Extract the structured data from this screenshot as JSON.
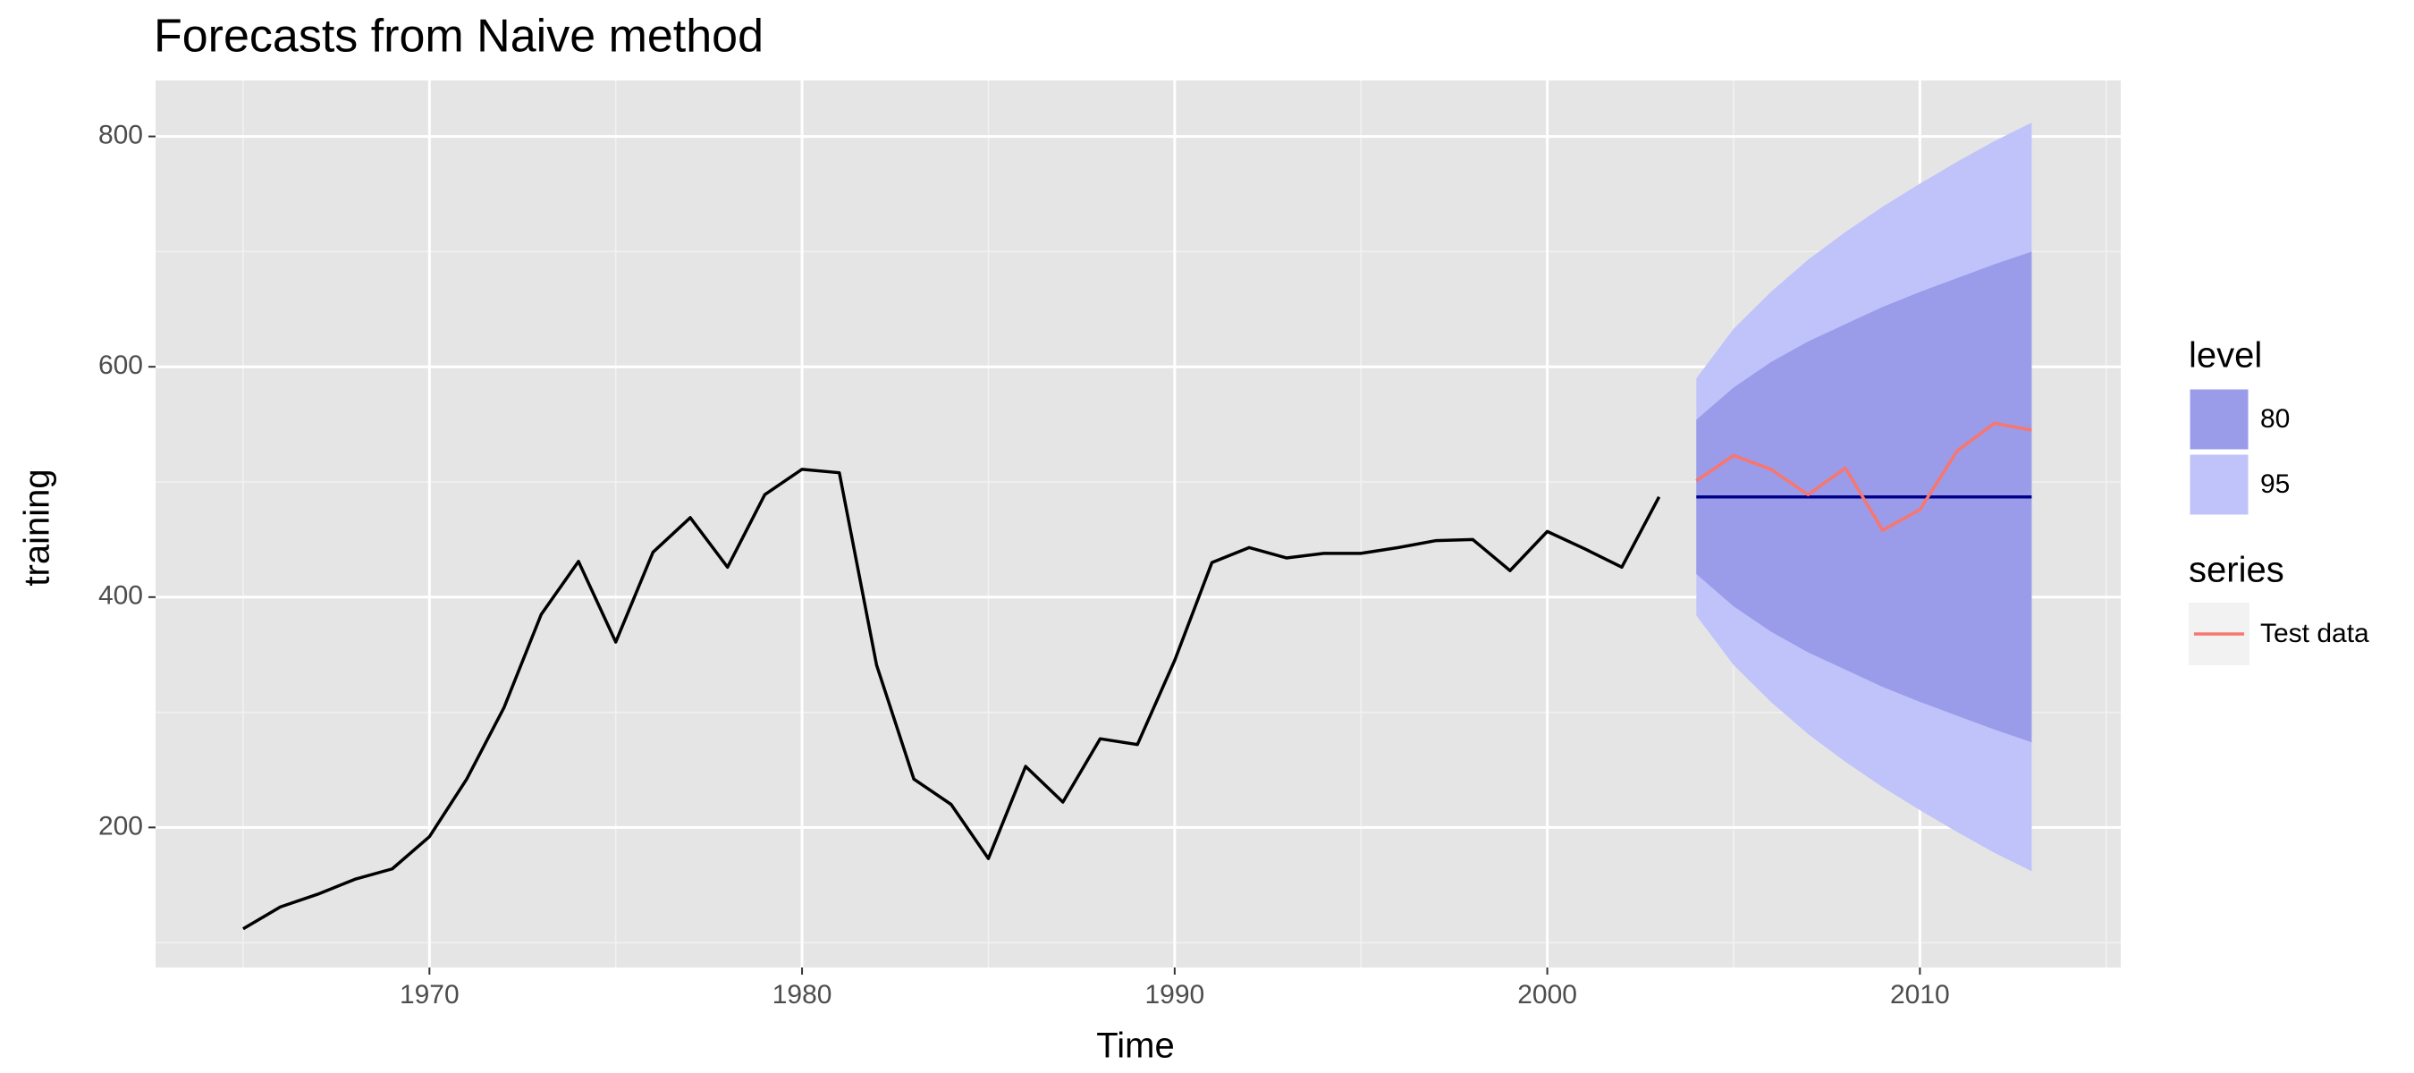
{
  "chart_data": {
    "type": "line",
    "title": "Forecasts from Naive method",
    "x_label": "Time",
    "y_label": "training",
    "x": [
      1965,
      1966,
      1967,
      1968,
      1969,
      1970,
      1971,
      1972,
      1973,
      1974,
      1975,
      1976,
      1977,
      1978,
      1979,
      1980,
      1981,
      1982,
      1983,
      1984,
      1985,
      1986,
      1987,
      1988,
      1989,
      1990,
      1991,
      1992,
      1993,
      1994,
      1995,
      1996,
      1997,
      1998,
      1999,
      2000,
      2001,
      2002,
      2003,
      2004,
      2005,
      2006,
      2007,
      2008,
      2009,
      2010,
      2011,
      2012,
      2013
    ],
    "xlim": [
      1962.65,
      2015.39
    ],
    "ylim": [
      78.4,
      848.6
    ],
    "xticks": [
      1970,
      1980,
      1990,
      2000,
      2010
    ],
    "yticks": [
      200,
      400,
      600,
      800
    ],
    "grid": true,
    "legend_position": "right",
    "band_legend_title": "level",
    "series_legend_title": "series",
    "bands": [
      {
        "name": "95",
        "color": "#c0c3fa",
        "upper": [
          null,
          null,
          null,
          null,
          null,
          null,
          null,
          null,
          null,
          null,
          null,
          null,
          null,
          null,
          null,
          null,
          null,
          null,
          null,
          null,
          null,
          null,
          null,
          null,
          null,
          null,
          null,
          null,
          null,
          null,
          null,
          null,
          null,
          null,
          null,
          null,
          null,
          null,
          null,
          590,
          633,
          665,
          693,
          717,
          739,
          759,
          778,
          796,
          812
        ],
        "lower": [
          null,
          null,
          null,
          null,
          null,
          null,
          null,
          null,
          null,
          null,
          null,
          null,
          null,
          null,
          null,
          null,
          null,
          null,
          null,
          null,
          null,
          null,
          null,
          null,
          null,
          null,
          null,
          null,
          null,
          null,
          null,
          null,
          null,
          null,
          null,
          null,
          null,
          null,
          null,
          384,
          341,
          309,
          281,
          257,
          235,
          215,
          196,
          178,
          162
        ]
      },
      {
        "name": "80",
        "color": "#9a9cea",
        "upper": [
          null,
          null,
          null,
          null,
          null,
          null,
          null,
          null,
          null,
          null,
          null,
          null,
          null,
          null,
          null,
          null,
          null,
          null,
          null,
          null,
          null,
          null,
          null,
          null,
          null,
          null,
          null,
          null,
          null,
          null,
          null,
          null,
          null,
          null,
          null,
          null,
          null,
          null,
          null,
          554,
          582,
          604,
          622,
          637,
          652,
          665,
          677,
          689,
          700
        ],
        "lower": [
          null,
          null,
          null,
          null,
          null,
          null,
          null,
          null,
          null,
          null,
          null,
          null,
          null,
          null,
          null,
          null,
          null,
          null,
          null,
          null,
          null,
          null,
          null,
          null,
          null,
          null,
          null,
          null,
          null,
          null,
          null,
          null,
          null,
          null,
          null,
          null,
          null,
          null,
          null,
          420,
          392,
          370,
          352,
          337,
          322,
          309,
          297,
          285,
          274
        ]
      }
    ],
    "lines": [
      {
        "color": "#000000",
        "values": [
          112,
          131,
          142,
          155,
          164,
          192,
          242,
          304,
          385,
          431,
          361,
          439,
          469,
          426,
          489,
          511,
          508,
          341,
          242,
          220,
          173,
          253,
          222,
          277,
          272,
          345,
          430,
          443,
          434,
          438,
          438,
          443,
          449,
          450,
          423,
          457,
          442,
          426,
          487,
          null,
          null,
          null,
          null,
          null,
          null,
          null,
          null,
          null,
          null
        ]
      },
      {
        "color": "#00008b",
        "values": [
          null,
          null,
          null,
          null,
          null,
          null,
          null,
          null,
          null,
          null,
          null,
          null,
          null,
          null,
          null,
          null,
          null,
          null,
          null,
          null,
          null,
          null,
          null,
          null,
          null,
          null,
          null,
          null,
          null,
          null,
          null,
          null,
          null,
          null,
          null,
          null,
          null,
          null,
          null,
          487,
          487,
          487,
          487,
          487,
          487,
          487,
          487,
          487,
          487
        ]
      }
    ],
    "series": [
      {
        "name": "Test data",
        "color": "#f8766d",
        "values": [
          null,
          null,
          null,
          null,
          null,
          null,
          null,
          null,
          null,
          null,
          null,
          null,
          null,
          null,
          null,
          null,
          null,
          null,
          null,
          null,
          null,
          null,
          null,
          null,
          null,
          null,
          null,
          null,
          null,
          null,
          null,
          null,
          null,
          null,
          null,
          null,
          null,
          null,
          null,
          501,
          523,
          511,
          489,
          512,
          458,
          476,
          527,
          551,
          545
        ]
      }
    ]
  }
}
